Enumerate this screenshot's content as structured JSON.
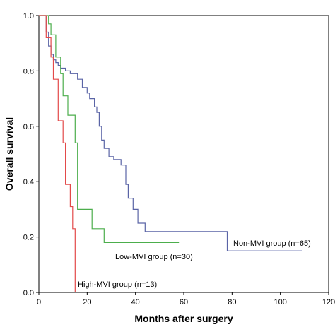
{
  "chart_data": {
    "type": "line",
    "xlabel": "Months after surgery",
    "ylabel": "Overall survival",
    "xlim": [
      0,
      120
    ],
    "ylim": [
      0,
      1.0
    ],
    "xticks": [
      "0",
      "20",
      "40",
      "60",
      "80",
      "100",
      "120"
    ],
    "yticks": [
      "0.0",
      "0.2",
      "0.4",
      "0.6",
      "0.8",
      "1.0"
    ],
    "grid": false,
    "series": [
      {
        "name": "Non-MVI group (n=65)",
        "color": "#5a64a6",
        "x": [
          0,
          3,
          4,
          5,
          6,
          7,
          8,
          9,
          11,
          13,
          16,
          18,
          20,
          21,
          23,
          24,
          25,
          26,
          27,
          29,
          31,
          34,
          36,
          37,
          39,
          41,
          44,
          78,
          109
        ],
        "y": [
          1.0,
          0.94,
          0.89,
          0.86,
          0.84,
          0.83,
          0.82,
          0.81,
          0.8,
          0.79,
          0.77,
          0.74,
          0.72,
          0.7,
          0.67,
          0.65,
          0.6,
          0.55,
          0.52,
          0.49,
          0.48,
          0.46,
          0.39,
          0.34,
          0.3,
          0.25,
          0.22,
          0.15,
          0.15
        ]
      },
      {
        "name": "Low-MVI group (n=30)",
        "color": "#4cae4c",
        "x": [
          0,
          4,
          5,
          7,
          9,
          10,
          12,
          15,
          16,
          22,
          27,
          58
        ],
        "y": [
          1.0,
          0.97,
          0.93,
          0.85,
          0.79,
          0.71,
          0.64,
          0.54,
          0.3,
          0.23,
          0.18,
          0.18
        ]
      },
      {
        "name": "High-MVI group (n=13)",
        "color": "#e34a4a",
        "x": [
          0,
          3,
          5,
          6,
          8,
          10,
          11,
          13,
          14,
          15
        ],
        "y": [
          1.0,
          0.92,
          0.85,
          0.77,
          0.62,
          0.54,
          0.39,
          0.31,
          0.23,
          0.0
        ]
      }
    ]
  }
}
